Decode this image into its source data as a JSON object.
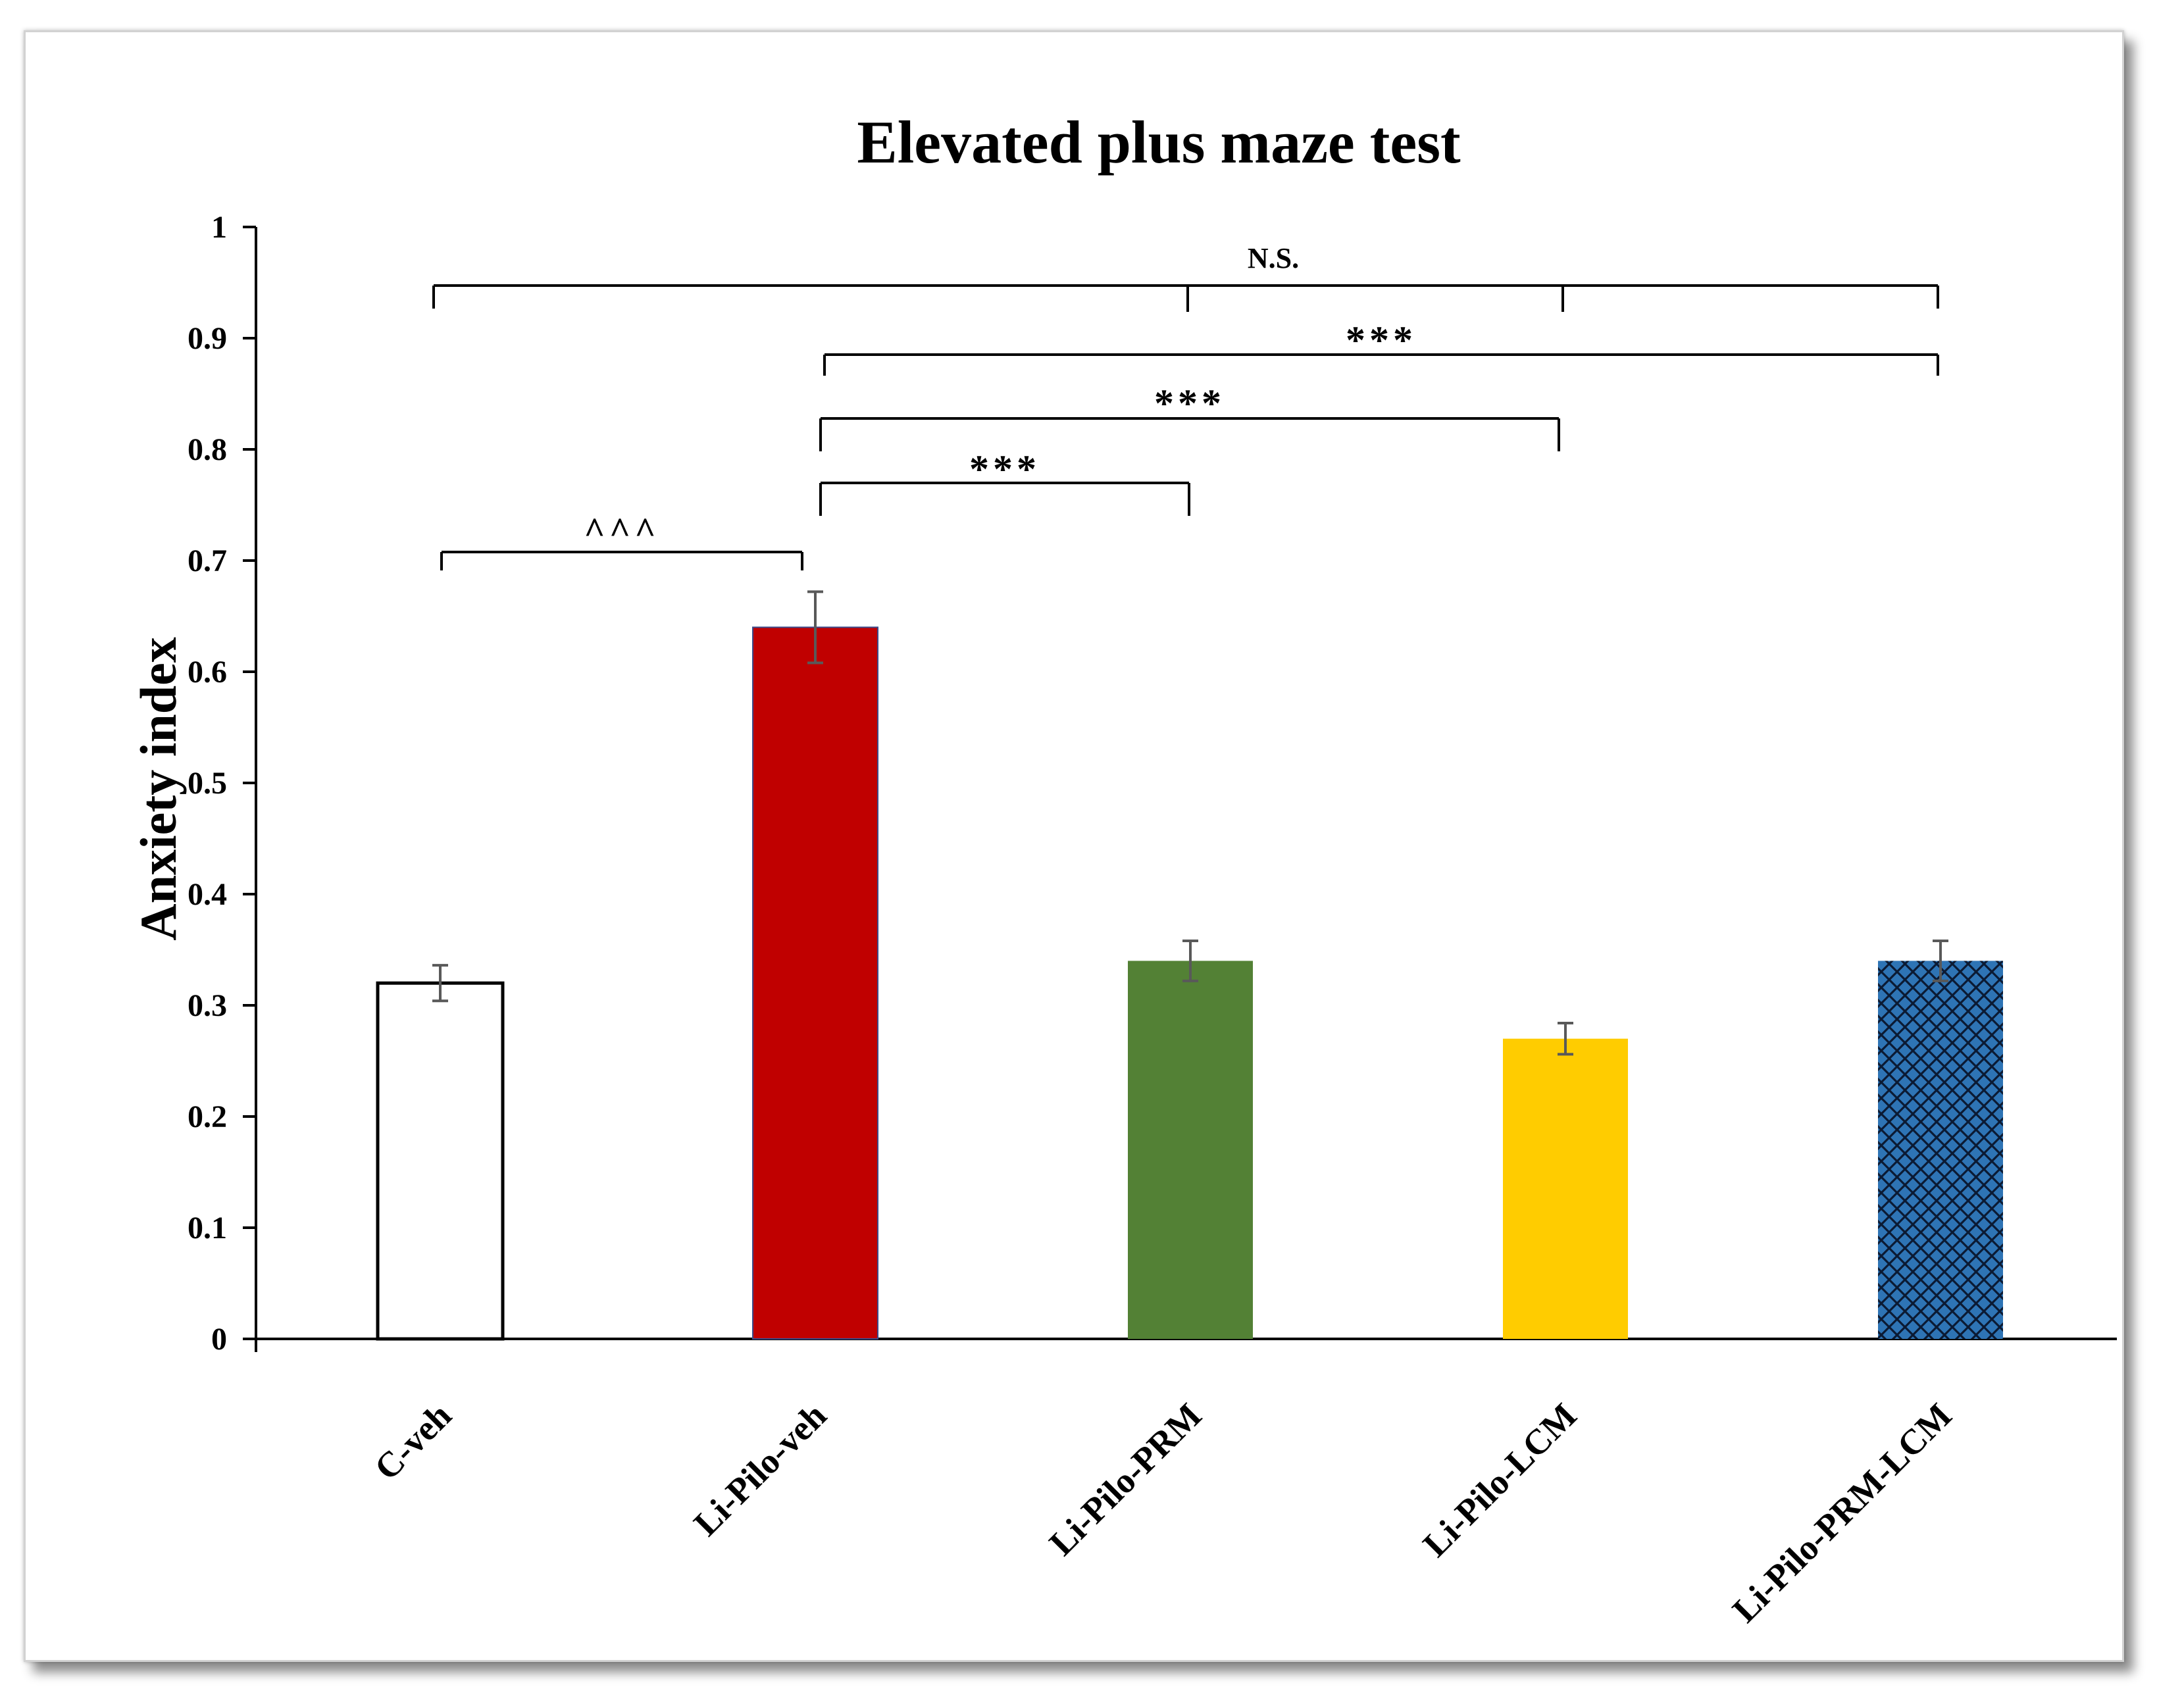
{
  "chart_data": {
    "type": "bar",
    "title": "Elevated plus maze test",
    "xlabel": "",
    "ylabel": "Anxiety index",
    "ylim": [
      0,
      1
    ],
    "yticks": [
      "0",
      "0.1",
      "0.2",
      "0.3",
      "0.4",
      "0.5",
      "0.6",
      "0.7",
      "0.8",
      "0.9",
      "1"
    ],
    "categories": [
      "C-veh",
      "Li-Pilo-veh",
      "Li-Pilo-PRM",
      "Li-Pilo-LCM",
      "Li-Pilo-PRM-LCM"
    ],
    "values": [
      0.32,
      0.64,
      0.34,
      0.27,
      0.34
    ],
    "errors": [
      0.016,
      0.032,
      0.018,
      0.014,
      0.018
    ],
    "colors": [
      "#ffffff",
      "#c00000",
      "#538135",
      "#ffcc00",
      "#2e74b5"
    ],
    "fills": [
      "outline",
      "solid",
      "solid",
      "solid",
      "crosshatch"
    ],
    "grid": false,
    "legend": "none",
    "annotations": [
      {
        "label": "^^^",
        "from": "C-veh",
        "to": "Li-Pilo-veh"
      },
      {
        "label": "***",
        "from": "Li-Pilo-veh",
        "to": "Li-Pilo-PRM"
      },
      {
        "label": "***",
        "from": "Li-Pilo-veh",
        "to": "Li-Pilo-LCM"
      },
      {
        "label": "***",
        "from": "Li-Pilo-veh",
        "to": "Li-Pilo-PRM-LCM"
      },
      {
        "label": "N.S.",
        "from": "C-veh",
        "to": "Li-Pilo-PRM-LCM",
        "drops": [
          "C-veh",
          "Li-Pilo-PRM",
          "Li-Pilo-LCM",
          "Li-Pilo-PRM-LCM"
        ]
      }
    ]
  }
}
